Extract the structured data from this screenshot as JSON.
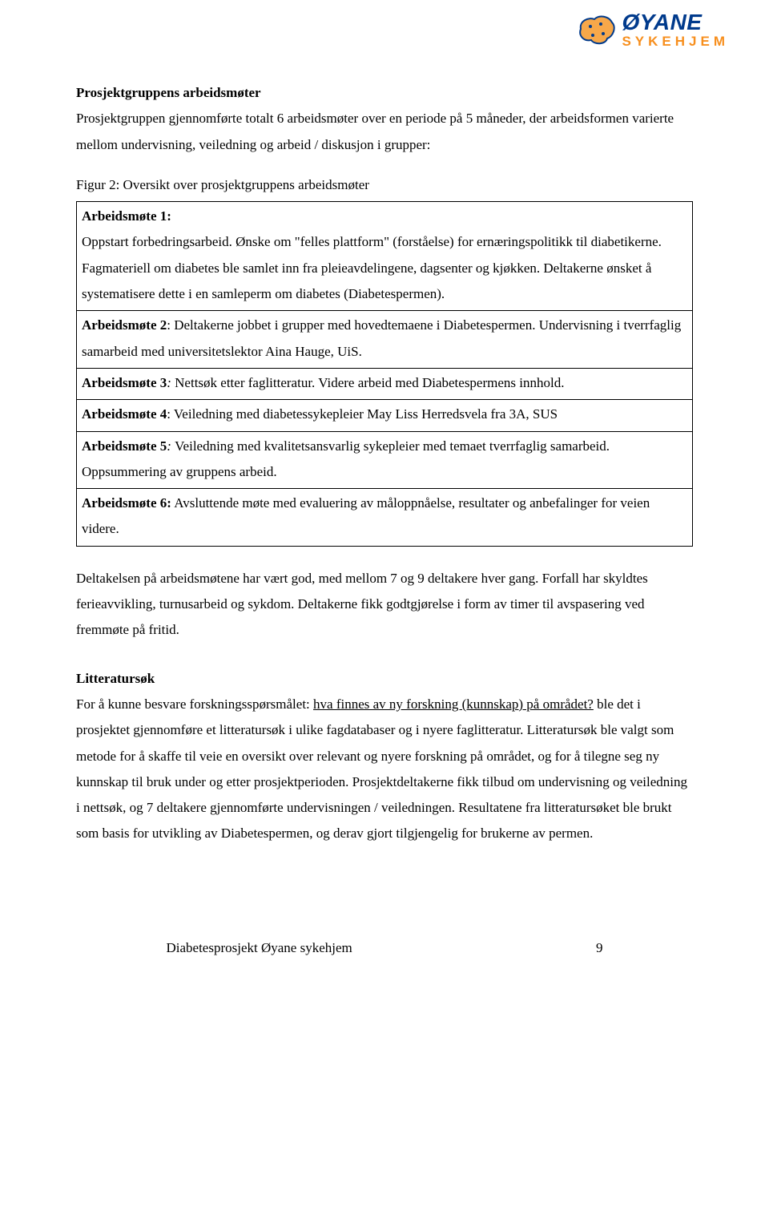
{
  "logo": {
    "line1": "ØYANE",
    "line2": "SYKEHJEM",
    "icon_fill": "#f78f1e",
    "icon_stroke": "#003a8c"
  },
  "heading1": "Prosjektgruppens arbeidsmøter",
  "intro": "Prosjektgruppen gjennomførte totalt 6 arbeidsmøter over en periode på 5 måneder, der arbeidsformen varierte mellom undervisning, veiledning og arbeid / diskusjon i grupper:",
  "fig_caption": "Figur 2: Oversikt over prosjektgruppens arbeidsmøter",
  "table": {
    "rows": [
      {
        "label": "Arbeidsmøte 1",
        "label_suffix": ":",
        "label_italic": false,
        "body": "Oppstart forbedringsarbeid. Ønske om \"felles plattform\" (forståelse) for ernæringspolitikk til diabetikerne. Fagmateriell om diabetes ble samlet inn fra pleieavdelingene, dagsenter og kjøkken. Deltakerne ønsket å systematisere dette i en samleperm om diabetes (Diabetespermen).",
        "label_inline": false
      },
      {
        "label": "Arbeidsmøte 2",
        "label_suffix": ": ",
        "label_italic": false,
        "body": "Deltakerne jobbet i grupper med hovedtemaene i Diabetespermen. Undervisning i tverrfaglig samarbeid med universitetslektor Aina Hauge, UiS.",
        "label_inline": true
      },
      {
        "label": "Arbeidsmøte 3",
        "label_suffix": ": ",
        "label_italic": true,
        "body": "Nettsøk etter faglitteratur. Videre arbeid med Diabetespermens innhold.",
        "label_inline": true
      },
      {
        "label": "Arbeidsmøte 4",
        "label_suffix": ": ",
        "label_italic": false,
        "body": "Veiledning med diabetessykepleier May Liss Herredsvela fra 3A, SUS",
        "label_inline": true
      },
      {
        "label": "Arbeidsmøte 5",
        "label_suffix": ": ",
        "label_italic": true,
        "body": "Veiledning med kvalitetsansvarlig sykepleier med temaet tverrfaglig samarbeid. Oppsummering av gruppens arbeid.",
        "label_inline": true
      },
      {
        "label": "Arbeidsmøte 6:",
        "label_suffix": " ",
        "label_italic": false,
        "body": "Avsluttende møte med evaluering av måloppnåelse, resultater og anbefalinger for veien videre.",
        "label_inline": true
      }
    ]
  },
  "para1": "Deltakelsen på arbeidsmøtene har vært god, med mellom 7 og 9 deltakere hver gang.  Forfall har skyldtes ferieavvikling, turnusarbeid og sykdom. Deltakerne fikk godtgjørelse i form av timer til avspasering ved fremmøte på fritid.",
  "heading2": "Litteratursøk",
  "para2_pre": "For å kunne besvare forskningsspørsmålet: ",
  "para2_underlined": "hva finnes av ny forskning (kunnskap) på området?",
  "para2_post": " ble det i prosjektet gjennomføre et litteratursøk i ulike fagdatabaser og i nyere faglitteratur. Litteratursøk ble valgt som metode for å skaffe til veie en oversikt over relevant og nyere forskning på området, og for å tilegne seg ny kunnskap til bruk under og etter prosjektperioden. Prosjektdeltakerne fikk tilbud om undervisning og veiledning i nettsøk, og 7 deltakere gjennomførte undervisningen / veiledningen. Resultatene fra litteratursøket ble brukt som basis for utvikling av Diabetespermen, og derav gjort tilgjengelig for brukerne av permen.",
  "footer_text": "Diabetesprosjekt Øyane sykehjem",
  "footer_page": "9"
}
